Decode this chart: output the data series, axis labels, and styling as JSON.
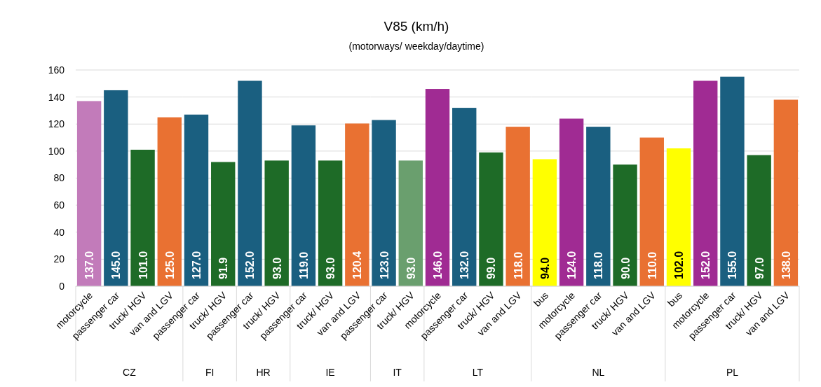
{
  "chart_data": [
    {
      "type": "bar",
      "xlabel": "CZ",
      "categories": [
        "motorcycle",
        "passenger car",
        "truck/ HGV",
        "van and LGV"
      ],
      "values": [
        137,
        145,
        101,
        125
      ],
      "value_labels": [
        "137.0",
        "145.0",
        "101.0",
        "125.0"
      ],
      "colors": [
        "#c27bba",
        "#1a5f80",
        "#1e6b27",
        "#e97132"
      ],
      "ylim": [
        0,
        160
      ],
      "yticks": [
        0,
        20,
        40,
        60,
        80,
        100,
        120,
        140,
        160
      ],
      "grid": "y"
    },
    {
      "type": "bar",
      "xlabel": "FI",
      "categories": [
        "passenger car",
        "truck/ HGV"
      ],
      "values": [
        127,
        91.9
      ],
      "value_labels": [
        "127.0",
        "91.9"
      ],
      "colors": [
        "#1a5f80",
        "#1e6b27"
      ],
      "ylim": [
        0,
        160
      ],
      "yticks": [
        0,
        20,
        40,
        60,
        80,
        100,
        120,
        140,
        160
      ],
      "grid": "y",
      "tick_labels": "x"
    },
    {
      "type": "bar",
      "xlabel": "HR",
      "categories": [
        "passenger car",
        "truck/ HGV"
      ],
      "values": [
        152,
        93
      ],
      "value_labels": [
        "152.0",
        "93.0"
      ],
      "colors": [
        "#1a5f80",
        "#1e6b27"
      ],
      "ylim": [
        0,
        160
      ],
      "yticks": [
        0,
        20,
        40,
        60,
        80,
        100,
        120,
        140,
        160
      ],
      "grid": "y",
      "tick_labels": "x"
    },
    {
      "type": "bar",
      "xlabel": "IE",
      "categories": [
        "passenger car",
        "truck/ HGV",
        "van and LGV"
      ],
      "values": [
        119,
        93,
        120.4
      ],
      "value_labels": [
        "119.0",
        "93.0",
        "120.4"
      ],
      "colors": [
        "#1a5f80",
        "#1e6b27",
        "#e97132"
      ],
      "ylim": [
        0,
        160
      ],
      "yticks": [
        0,
        20,
        40,
        60,
        80,
        100,
        120,
        140,
        160
      ],
      "grid": "y",
      "tick_labels": "x"
    },
    {
      "type": "bar",
      "title": "V85 (km/h)",
      "subtitle": "(motorways/ weekday/daytime)",
      "xlabel": "IT",
      "categories": [
        "passenger car",
        "truck/ HGV"
      ],
      "values": [
        123,
        93
      ],
      "value_labels": [
        "123.0",
        "93.0"
      ],
      "colors": [
        "#1a5f80",
        "#6a9f6e"
      ],
      "ylim": [
        0,
        160
      ],
      "yticks": [
        0,
        20,
        40,
        60,
        80,
        100,
        120,
        140,
        160
      ],
      "grid": "y",
      "tick_labels": "x"
    },
    {
      "type": "bar",
      "xlabel": "LT",
      "categories": [
        "motorcycle",
        "passenger car",
        "truck/ HGV",
        "van and LGV"
      ],
      "values": [
        146,
        132,
        99,
        118
      ],
      "value_labels": [
        "146.0",
        "132.0",
        "99.0",
        "118.0"
      ],
      "colors": [
        "#a02b93",
        "#1a5f80",
        "#1e6b27",
        "#e97132"
      ],
      "ylim": [
        0,
        160
      ],
      "yticks": [
        0,
        20,
        40,
        60,
        80,
        100,
        120,
        140,
        160
      ],
      "grid": "y",
      "tick_labels": "x"
    },
    {
      "type": "bar",
      "xlabel": "NL",
      "categories": [
        "bus",
        "motorcycle",
        "passenger car",
        "truck/ HGV",
        "van and LGV"
      ],
      "values": [
        94,
        124,
        118,
        90,
        110
      ],
      "value_labels": [
        "94.0",
        "124.0",
        "118.0",
        "90.0",
        "110.0"
      ],
      "colors": [
        "#ffff00",
        "#a02b93",
        "#1a5f80",
        "#1e6b27",
        "#e97132"
      ],
      "ylim": [
        0,
        160
      ],
      "yticks": [
        0,
        20,
        40,
        60,
        80,
        100,
        120,
        140,
        160
      ],
      "grid": "y",
      "tick_labels": "x"
    },
    {
      "type": "bar",
      "xlabel": "PL",
      "categories": [
        "bus",
        "motorcycle",
        "passenger car",
        "truck/ HGV",
        "van and LGV"
      ],
      "values": [
        102,
        152,
        155,
        97,
        138
      ],
      "value_labels": [
        "102.0",
        "152.0",
        "155.0",
        "97.0",
        "138.0"
      ],
      "colors": [
        "#ffff00",
        "#a02b93",
        "#1a5f80",
        "#1e6b27",
        "#e97132"
      ],
      "ylim": [
        0,
        160
      ],
      "yticks": [
        0,
        20,
        40,
        60,
        80,
        100,
        120,
        140,
        160
      ],
      "grid": "y",
      "tick_labels": "x"
    }
  ]
}
